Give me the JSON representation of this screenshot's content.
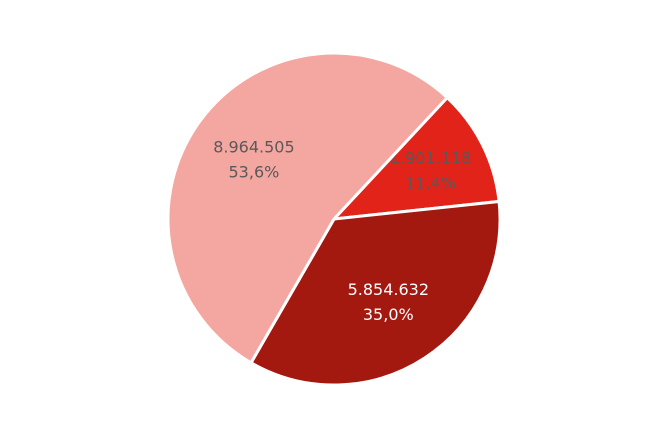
{
  "chart_data": {
    "type": "pie",
    "values": [
      1901118,
      5854632,
      8964505
    ],
    "value_labels": [
      "1.901.118",
      "5.854.632",
      "8.964.505"
    ],
    "percents": [
      11.4,
      35.0,
      53.6
    ],
    "percent_labels": [
      "11,4%",
      "35,0%",
      "53,6%"
    ],
    "colors": [
      "#e2231a",
      "#a3180f",
      "#f4a7a1"
    ],
    "label_colors": [
      "#595959",
      "#ffffff",
      "#595959"
    ]
  }
}
